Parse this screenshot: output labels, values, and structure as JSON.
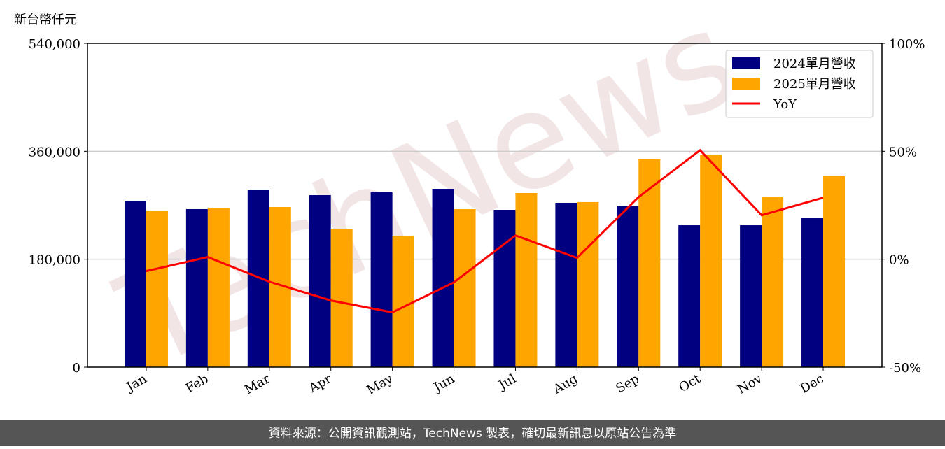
{
  "chart_data": {
    "type": "bar-line",
    "y_axis_label": "新台幣仟元",
    "categories": [
      "Jan",
      "Feb",
      "Mar",
      "Apr",
      "May",
      "Jun",
      "Jul",
      "Aug",
      "Sep",
      "Oct",
      "Nov",
      "Dec"
    ],
    "series": [
      {
        "name": "2024單月營收",
        "color": "#000080",
        "type": "bar",
        "values": [
          277600,
          263600,
          296200,
          286900,
          291600,
          297400,
          262400,
          274100,
          269400,
          236700,
          236700,
          248400
        ]
      },
      {
        "name": "2025單月營收",
        "color": "#ffa500",
        "type": "bar",
        "values": [
          261300,
          265900,
          267100,
          230900,
          219300,
          263600,
          290400,
          275300,
          346400,
          354600,
          284600,
          319600
        ]
      },
      {
        "name": "YoY",
        "color": "#ff0000",
        "type": "line",
        "axis": "y2",
        "values": [
          -5.5,
          1.0,
          -10.4,
          -19.1,
          -24.6,
          -10.7,
          11.0,
          0.6,
          28.8,
          50.5,
          20.4,
          28.5
        ]
      }
    ],
    "ylim": [
      0,
      540000
    ],
    "yticks": [
      0,
      {
        "value": 180000,
        "label": "180,000"
      },
      {
        "value": 360000,
        "label": "360,000"
      },
      {
        "value": 540000,
        "label": "540,000"
      }
    ],
    "y2lim": [
      -50,
      100
    ],
    "y2ticks": [
      {
        "value": -50,
        "label": "-50%"
      },
      {
        "value": 0,
        "label": "0%"
      },
      {
        "value": 50,
        "label": "50%"
      },
      {
        "value": 100,
        "label": "100%"
      }
    ],
    "grid": true,
    "legend": "upper right",
    "watermark": "TechNews",
    "footer": "資料來源：公開資訊觀測站，TechNews 製表，確切最新訊息以原站公告為準"
  }
}
